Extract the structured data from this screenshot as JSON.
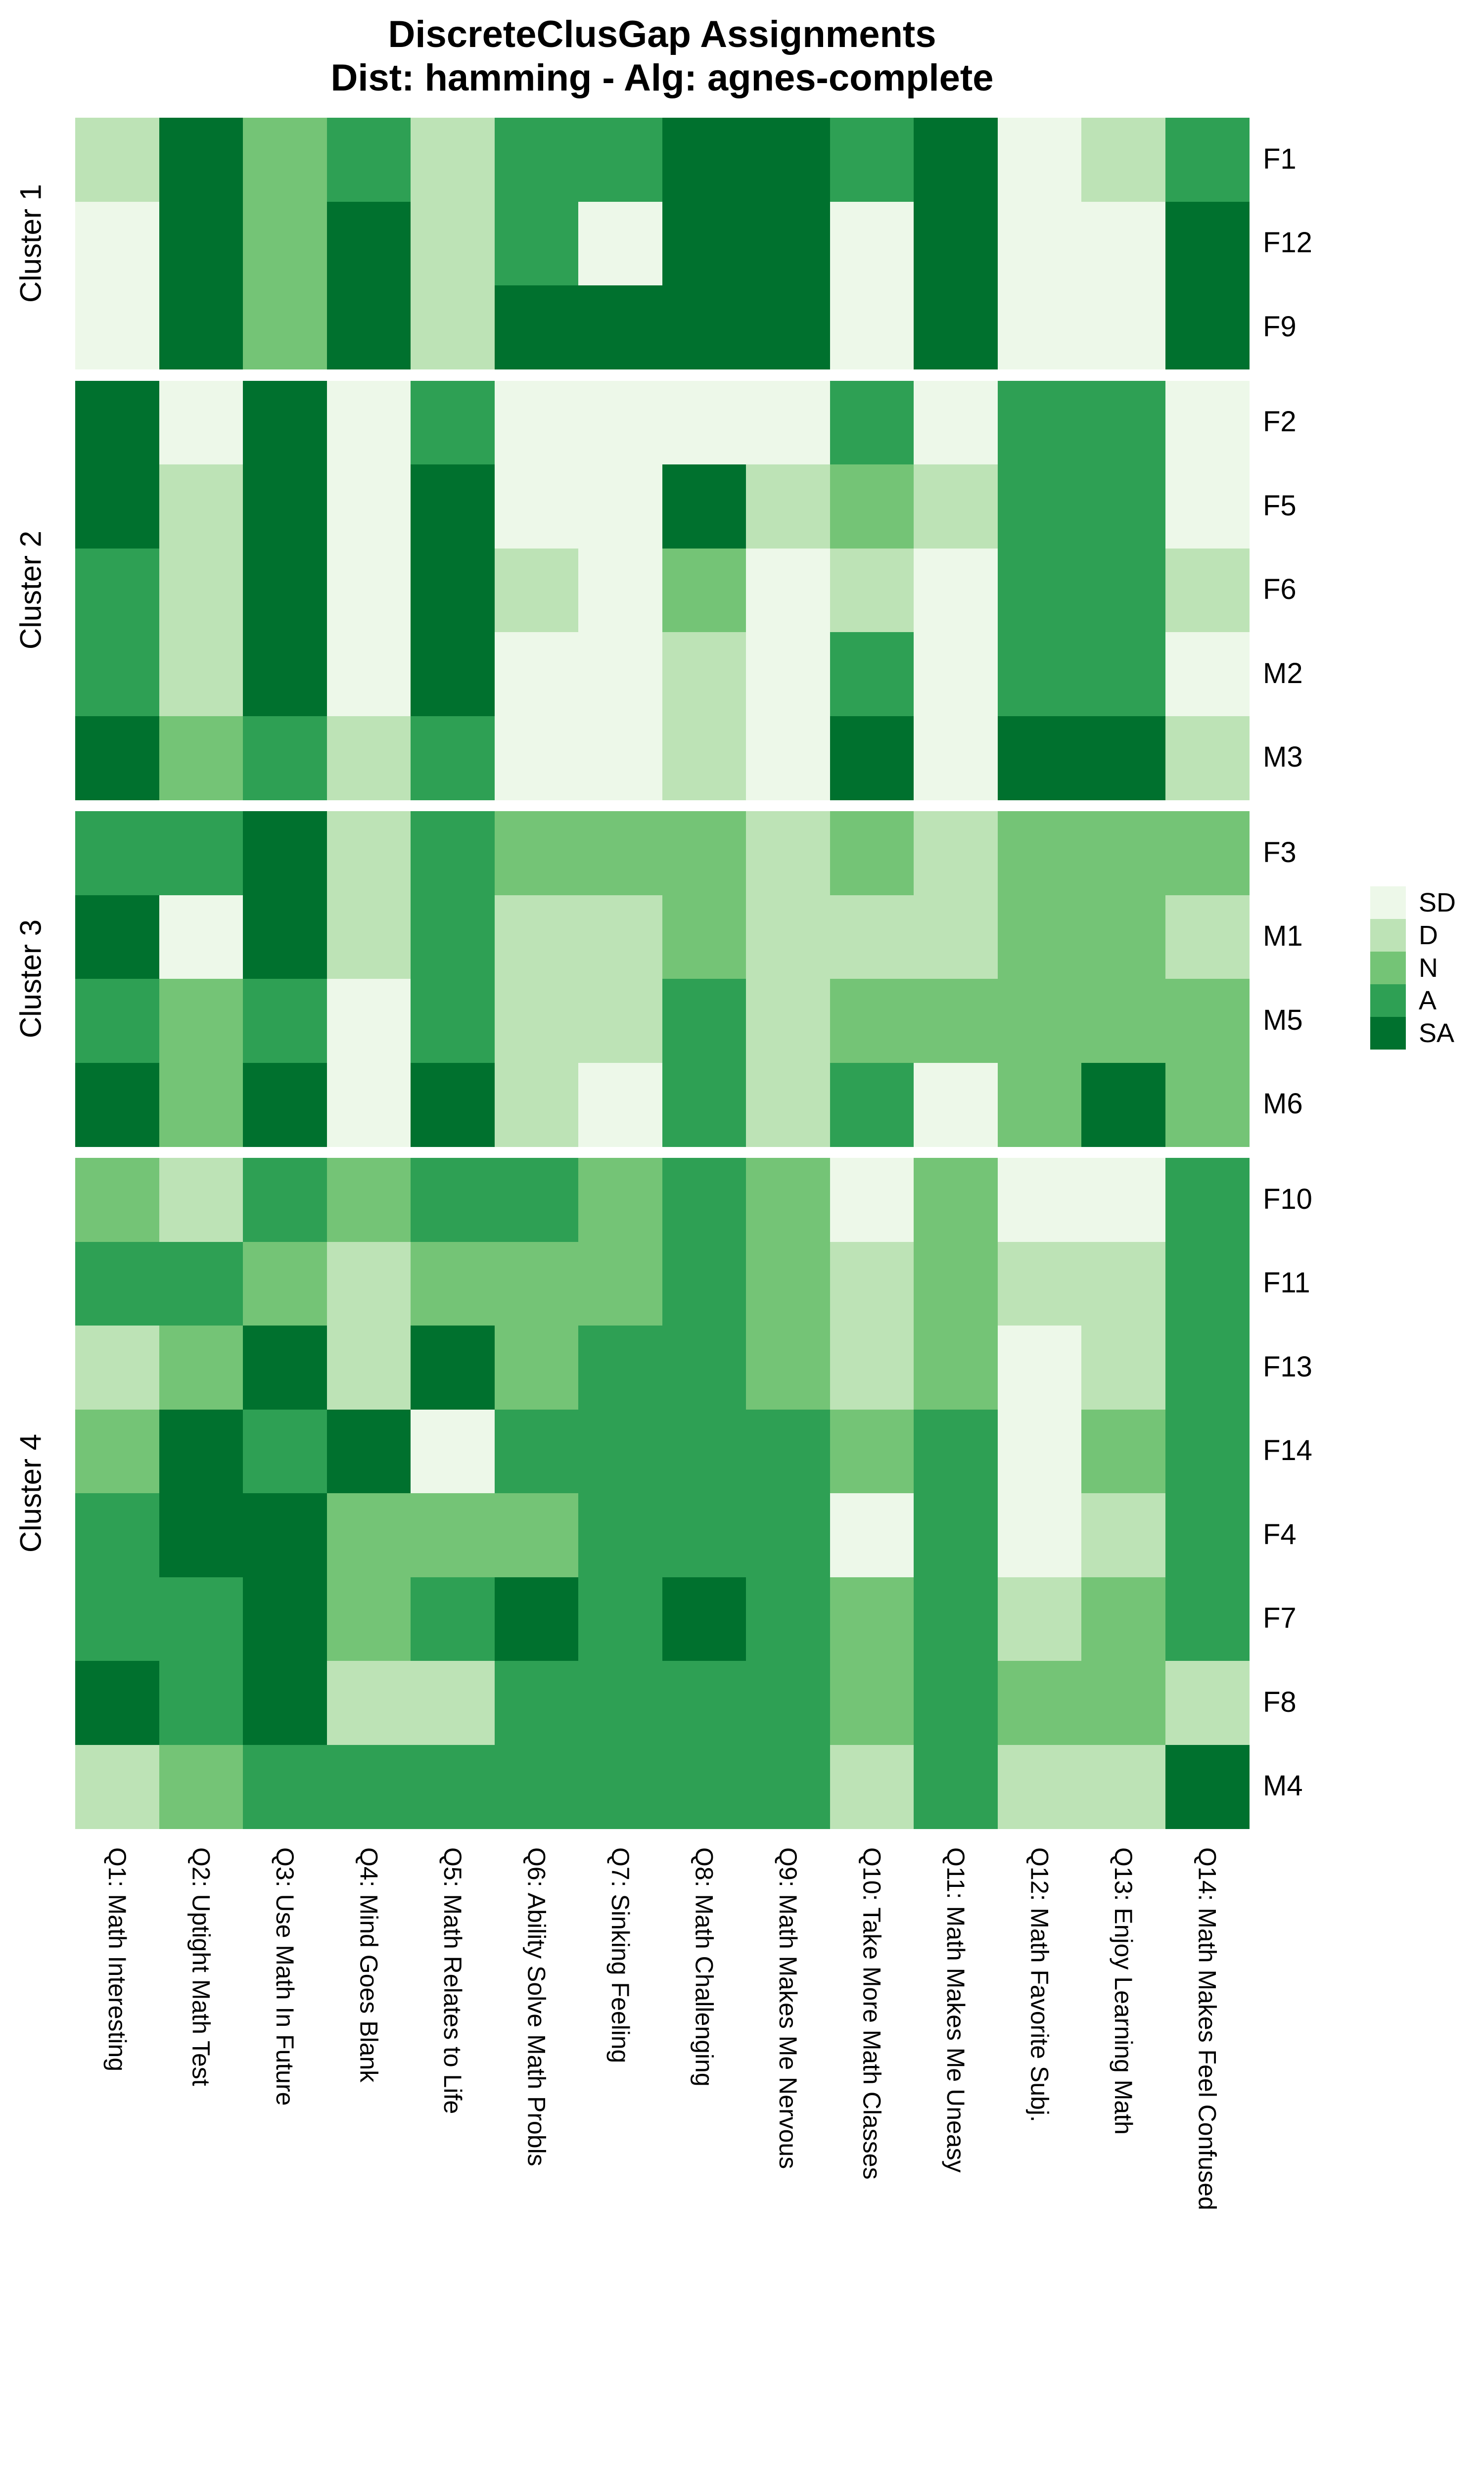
{
  "title": {
    "line1": "DiscreteClusGap Assignments",
    "line2": "Dist: hamming - Alg: agnes-complete"
  },
  "legend": {
    "entries": [
      {
        "label": "SD",
        "value": "SD"
      },
      {
        "label": "D",
        "value": "D"
      },
      {
        "label": "N",
        "value": "N"
      },
      {
        "label": "A",
        "value": "A"
      },
      {
        "label": "SA",
        "value": "SA"
      }
    ]
  },
  "chart_data": {
    "type": "heatmap",
    "title": "DiscreteClusGap Assignments",
    "subtitle": "Dist: hamming - Alg: agnes-complete",
    "legend_position": "right",
    "value_scale": [
      "SD",
      "D",
      "N",
      "A",
      "SA"
    ],
    "colors": {
      "SD": "#EDF8E9",
      "D": "#BDE3B6",
      "N": "#74C476",
      "A": "#2EA054",
      "SA": "#00712E"
    },
    "columns": [
      "Q1: Math Interesting",
      "Q2: Uptight Math Test",
      "Q3: Use Math In Future",
      "Q4: Mind Goes Blank",
      "Q5: Math Relates to Life",
      "Q6: Ability Solve Math Probls",
      "Q7: Sinking Feeling",
      "Q8: Math Challenging",
      "Q9: Math Makes Me Nervous",
      "Q10: Take More Math Classes",
      "Q11: Math Makes Me Uneasy",
      "Q12: Math Favorite Subj.",
      "Q13: Enjoy Learning Math",
      "Q14: Math Makes Feel Confused"
    ],
    "clusters": [
      {
        "name": "Cluster 1",
        "rows": [
          {
            "label": "F1",
            "values": [
              "D",
              "SA",
              "N",
              "A",
              "D",
              "A",
              "A",
              "SA",
              "SA",
              "A",
              "SA",
              "SD",
              "D",
              "A"
            ]
          },
          {
            "label": "F12",
            "values": [
              "SD",
              "SA",
              "N",
              "SA",
              "D",
              "A",
              "SD",
              "SA",
              "SA",
              "SD",
              "SA",
              "SD",
              "SD",
              "SA"
            ]
          },
          {
            "label": "F9",
            "values": [
              "SD",
              "SA",
              "N",
              "SA",
              "D",
              "SA",
              "SA",
              "SA",
              "SA",
              "SD",
              "SA",
              "SD",
              "SD",
              "SA"
            ]
          }
        ]
      },
      {
        "name": "Cluster 2",
        "rows": [
          {
            "label": "F2",
            "values": [
              "SA",
              "SD",
              "SA",
              "SD",
              "A",
              "SD",
              "SD",
              "SD",
              "SD",
              "A",
              "SD",
              "A",
              "A",
              "SD"
            ]
          },
          {
            "label": "F5",
            "values": [
              "SA",
              "D",
              "SA",
              "SD",
              "SA",
              "SD",
              "SD",
              "SA",
              "D",
              "N",
              "D",
              "A",
              "A",
              "SD"
            ]
          },
          {
            "label": "F6",
            "values": [
              "A",
              "D",
              "SA",
              "SD",
              "SA",
              "D",
              "SD",
              "N",
              "SD",
              "D",
              "SD",
              "A",
              "A",
              "D"
            ]
          },
          {
            "label": "M2",
            "values": [
              "A",
              "D",
              "SA",
              "SD",
              "SA",
              "SD",
              "SD",
              "D",
              "SD",
              "A",
              "SD",
              "A",
              "A",
              "SD"
            ]
          },
          {
            "label": "M3",
            "values": [
              "SA",
              "N",
              "A",
              "D",
              "A",
              "SD",
              "SD",
              "D",
              "SD",
              "SA",
              "SD",
              "SA",
              "SA",
              "D"
            ]
          }
        ]
      },
      {
        "name": "Cluster 3",
        "rows": [
          {
            "label": "F3",
            "values": [
              "A",
              "A",
              "SA",
              "D",
              "A",
              "N",
              "N",
              "N",
              "D",
              "N",
              "D",
              "N",
              "N",
              "N"
            ]
          },
          {
            "label": "M1",
            "values": [
              "SA",
              "SD",
              "SA",
              "D",
              "A",
              "D",
              "D",
              "N",
              "D",
              "D",
              "D",
              "N",
              "N",
              "D"
            ]
          },
          {
            "label": "M5",
            "values": [
              "A",
              "N",
              "A",
              "SD",
              "A",
              "D",
              "D",
              "A",
              "D",
              "N",
              "N",
              "N",
              "N",
              "N"
            ]
          },
          {
            "label": "M6",
            "values": [
              "SA",
              "N",
              "SA",
              "SD",
              "SA",
              "D",
              "SD",
              "A",
              "D",
              "A",
              "SD",
              "N",
              "SA",
              "N"
            ]
          }
        ]
      },
      {
        "name": "Cluster 4",
        "rows": [
          {
            "label": "F10",
            "values": [
              "N",
              "D",
              "A",
              "N",
              "A",
              "A",
              "N",
              "A",
              "N",
              "SD",
              "N",
              "SD",
              "SD",
              "A"
            ]
          },
          {
            "label": "F11",
            "values": [
              "A",
              "A",
              "N",
              "D",
              "N",
              "N",
              "N",
              "A",
              "N",
              "D",
              "N",
              "D",
              "D",
              "A"
            ]
          },
          {
            "label": "F13",
            "values": [
              "D",
              "N",
              "SA",
              "D",
              "SA",
              "N",
              "A",
              "A",
              "N",
              "D",
              "N",
              "SD",
              "D",
              "A"
            ]
          },
          {
            "label": "F14",
            "values": [
              "N",
              "SA",
              "A",
              "SA",
              "SD",
              "A",
              "A",
              "A",
              "A",
              "N",
              "A",
              "SD",
              "N",
              "A"
            ]
          },
          {
            "label": "F4",
            "values": [
              "A",
              "SA",
              "SA",
              "N",
              "N",
              "N",
              "A",
              "A",
              "A",
              "SD",
              "A",
              "SD",
              "D",
              "A"
            ]
          },
          {
            "label": "F7",
            "values": [
              "A",
              "A",
              "SA",
              "N",
              "A",
              "SA",
              "A",
              "SA",
              "A",
              "N",
              "A",
              "D",
              "N",
              "A"
            ]
          },
          {
            "label": "F8",
            "values": [
              "SA",
              "A",
              "SA",
              "D",
              "D",
              "A",
              "A",
              "A",
              "A",
              "N",
              "A",
              "N",
              "N",
              "D"
            ]
          },
          {
            "label": "M4",
            "values": [
              "D",
              "N",
              "A",
              "A",
              "A",
              "A",
              "A",
              "A",
              "A",
              "D",
              "A",
              "D",
              "D",
              "SA"
            ]
          }
        ]
      }
    ]
  }
}
